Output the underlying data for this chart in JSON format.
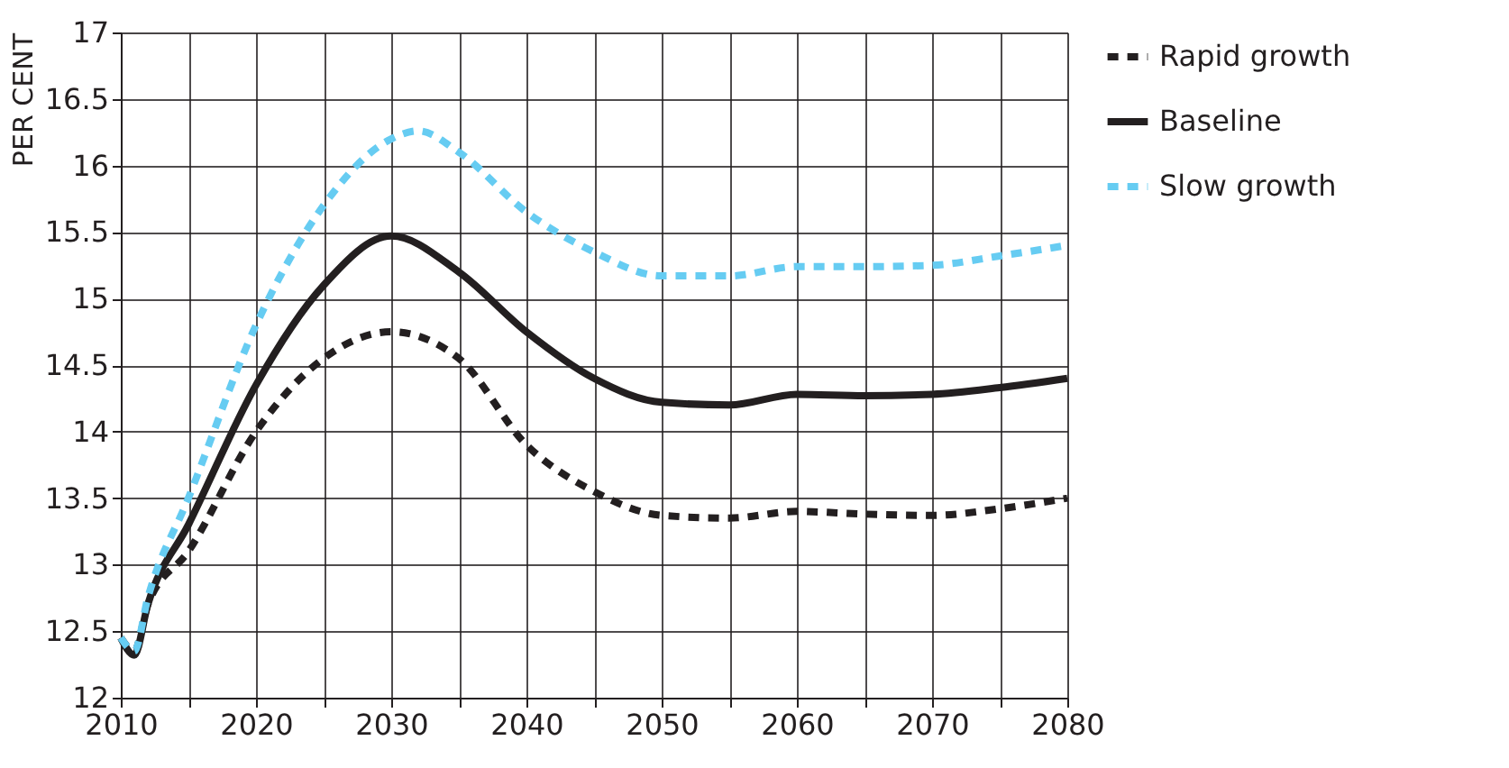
{
  "chart_data": {
    "type": "line",
    "ylabel": "PER CENT",
    "x": [
      2010,
      2011,
      2012,
      2015,
      2020,
      2025,
      2030,
      2035,
      2040,
      2045,
      2050,
      2055,
      2060,
      2065,
      2070,
      2075,
      2080
    ],
    "series": [
      {
        "name": "Rapid growth",
        "color": "#231f20",
        "line_style": "dashed",
        "values": [
          12.45,
          12.35,
          12.7,
          13.1,
          14.0,
          14.55,
          14.75,
          14.55,
          13.9,
          13.55,
          13.37,
          13.35,
          13.4,
          13.38,
          13.37,
          13.42,
          13.5
        ]
      },
      {
        "name": "Baseline",
        "color": "#231f20",
        "line_style": "solid",
        "values": [
          12.45,
          12.32,
          12.7,
          13.3,
          14.35,
          15.1,
          15.47,
          15.2,
          14.75,
          14.4,
          14.22,
          14.2,
          14.28,
          14.27,
          14.28,
          14.33,
          14.4
        ]
      },
      {
        "name": "Slow growth",
        "color": "#66ccf2",
        "line_style": "dashed",
        "x": [
          2010,
          2011,
          2012,
          2015,
          2020,
          2025,
          2030,
          2032,
          2035,
          2040,
          2045,
          2050,
          2055,
          2060,
          2065,
          2070,
          2075,
          2080
        ],
        "values": [
          12.45,
          12.35,
          12.75,
          13.5,
          14.8,
          15.7,
          16.2,
          16.26,
          16.1,
          15.65,
          15.35,
          15.17,
          15.17,
          15.24,
          15.24,
          15.25,
          15.32,
          15.4
        ]
      }
    ],
    "xlim": [
      2010,
      2080
    ],
    "xticks": [
      2010,
      {
        "value": 2015,
        "label": null
      },
      2020,
      {
        "value": 2025,
        "label": null
      },
      2030,
      {
        "value": 2035,
        "label": null
      },
      2040,
      {
        "value": 2045,
        "label": null
      },
      2050,
      {
        "value": 2055,
        "label": null
      },
      2060,
      {
        "value": 2065,
        "label": null
      },
      2070,
      {
        "value": 2075,
        "label": null
      },
      2080
    ],
    "ylim": [
      12,
      17
    ],
    "yticks": [
      12,
      12.5,
      13,
      13.5,
      14,
      14.5,
      15,
      15.5,
      16,
      16.5,
      17
    ],
    "grid": true,
    "legend": "right"
  }
}
